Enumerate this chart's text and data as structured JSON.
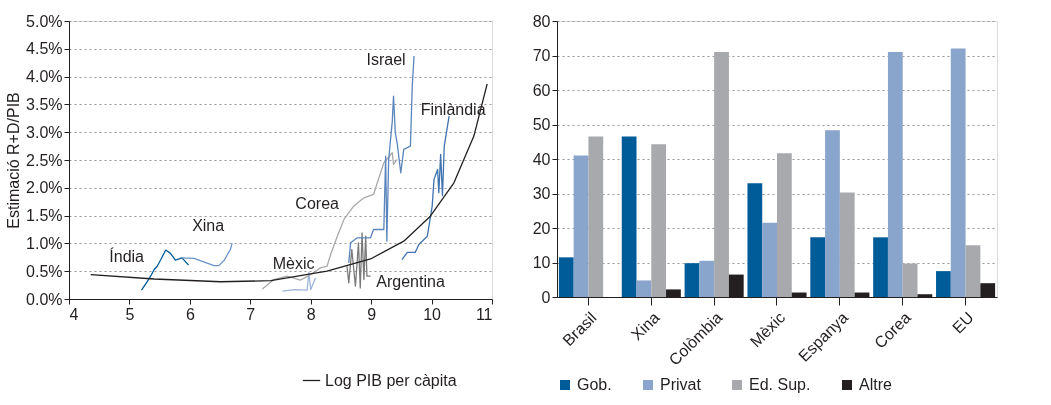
{
  "chart_data": [
    {
      "type": "line",
      "ylabel": "Estimació R+D/PIB",
      "xlim": [
        4,
        11
      ],
      "xticks": [
        4,
        5,
        6,
        7,
        8,
        9,
        10,
        11
      ],
      "ylim": [
        0,
        5
      ],
      "yticks": [
        {
          "value": 0,
          "label": "0.0%"
        },
        {
          "value": 0.5,
          "label": "0.5%"
        },
        {
          "value": 1,
          "label": "1.0%"
        },
        {
          "value": 1.5,
          "label": "1.5%"
        },
        {
          "value": 2,
          "label": "2.0%"
        },
        {
          "value": 2.5,
          "label": "2.5%"
        },
        {
          "value": 3,
          "label": "3.0%"
        },
        {
          "value": 3.5,
          "label": "3.5%"
        },
        {
          "value": 4,
          "label": "4.0%"
        },
        {
          "value": 4.5,
          "label": "4.5%"
        },
        {
          "value": 5,
          "label": "5.0%"
        }
      ],
      "grid": "y",
      "legend": "bottom right",
      "line_style": "solid",
      "marker": "none",
      "series": [
        {
          "name": "Índia",
          "color": "#005b99",
          "x": [
            5.2,
            5.3,
            5.35,
            5.41,
            5.46,
            5.52,
            5.6,
            5.68,
            5.76,
            5.82,
            5.87,
            5.98
          ],
          "values": [
            0.16,
            0.32,
            0.41,
            0.53,
            0.59,
            0.71,
            0.88,
            0.82,
            0.7,
            0.72,
            0.74,
            0.61
          ]
        },
        {
          "name": "Xina",
          "color": "#6a93c8",
          "x": [
            5.87,
            6.07,
            6.4,
            6.48,
            6.57,
            6.67,
            6.7
          ],
          "values": [
            0.74,
            0.73,
            0.6,
            0.6,
            0.7,
            0.89,
            1.0
          ]
        },
        {
          "name": "Mèxic",
          "color": "#9db5da",
          "x": [
            7.53,
            7.73,
            7.94,
            7.97,
            8.0,
            8.08
          ],
          "values": [
            0.14,
            0.17,
            0.16,
            0.48,
            0.17,
            0.38
          ]
        },
        {
          "name": "Corea",
          "color": "#a7a9ac",
          "x": [
            7.2,
            7.39,
            7.61,
            7.83,
            8.0,
            8.16,
            8.27,
            8.33,
            8.44,
            8.55,
            8.71,
            8.88,
            9.04,
            9.21,
            9.35,
            9.37,
            9.43
          ],
          "values": [
            0.18,
            0.35,
            0.41,
            0.34,
            0.44,
            0.56,
            0.59,
            0.8,
            1.13,
            1.43,
            1.67,
            1.82,
            1.88,
            2.45,
            2.63,
            2.42,
            2.51
          ]
        },
        {
          "name": "Argentina",
          "color": "#7a7a7a",
          "x": [
            8.6,
            8.63,
            8.68,
            8.74,
            8.79,
            8.82,
            8.85,
            8.88,
            8.91,
            8.93,
            8.99
          ],
          "values": [
            0.59,
            0.29,
            0.89,
            0.23,
            1.01,
            0.2,
            1.19,
            0.35,
            1.13,
            0.41,
            0.41
          ]
        },
        {
          "name": "Israel",
          "color": "#5b85bd",
          "x": [
            8.63,
            8.66,
            8.77,
            8.99,
            9.04,
            9.21,
            9.24,
            9.26,
            9.29,
            9.35,
            9.37,
            9.4,
            9.43,
            9.49,
            9.54,
            9.65,
            9.68,
            9.71
          ],
          "values": [
            0.65,
            1.01,
            1.1,
            1.1,
            1.25,
            1.25,
            2.57,
            1.04,
            2.51,
            3.2,
            3.65,
            2.99,
            2.81,
            2.27,
            2.69,
            2.75,
            3.83,
            4.37
          ]
        },
        {
          "name": "Finlàndia",
          "color": "#3f73b0",
          "x": [
            9.51,
            9.6,
            9.73,
            9.79,
            9.93,
            10.01,
            10.04,
            10.1,
            10.12,
            10.15,
            10.18,
            10.21,
            10.29
          ],
          "values": [
            0.71,
            0.84,
            0.84,
            0.98,
            1.13,
            1.67,
            2.15,
            2.33,
            1.91,
            2.6,
            1.86,
            2.75,
            3.29
          ]
        },
        {
          "name": "Log PIB per càpita",
          "type": "line",
          "color": "#231f20",
          "x": [
            4.36,
            5.41,
            6.51,
            7.34,
            8.27,
            8.99,
            9.54,
            9.98,
            10.37,
            10.7,
            10.92
          ],
          "values": [
            0.44,
            0.36,
            0.31,
            0.33,
            0.5,
            0.72,
            1.04,
            1.49,
            2.09,
            2.93,
            3.87
          ]
        }
      ]
    },
    {
      "type": "bar",
      "categories": [
        "Brasil",
        "Xina",
        "Colòmbia",
        "Mèxic",
        "Espanya",
        "Corea",
        "EU"
      ],
      "ylim": [
        0,
        80
      ],
      "yticks": [
        0,
        10,
        20,
        30,
        40,
        50,
        60,
        70,
        80
      ],
      "grid": "y",
      "legend": "bottom",
      "series": [
        {
          "name": "Gob.",
          "color": "#005b99",
          "values": [
            11.5,
            46.5,
            9.8,
            33,
            17.3,
            17.3,
            7.5
          ]
        },
        {
          "name": "Privat",
          "color": "#8aa5cc",
          "values": [
            41,
            4.8,
            10.5,
            21.5,
            48.3,
            71,
            72
          ]
        },
        {
          "name": "Ed. Sup.",
          "color": "#a7a9ac",
          "values": [
            46.5,
            44.3,
            71,
            41.7,
            30.3,
            9.7,
            15
          ]
        },
        {
          "name": "Altre",
          "color": "#231f20",
          "values": [
            null,
            2.2,
            6.5,
            1.3,
            1.3,
            0.8,
            4
          ]
        }
      ]
    }
  ]
}
